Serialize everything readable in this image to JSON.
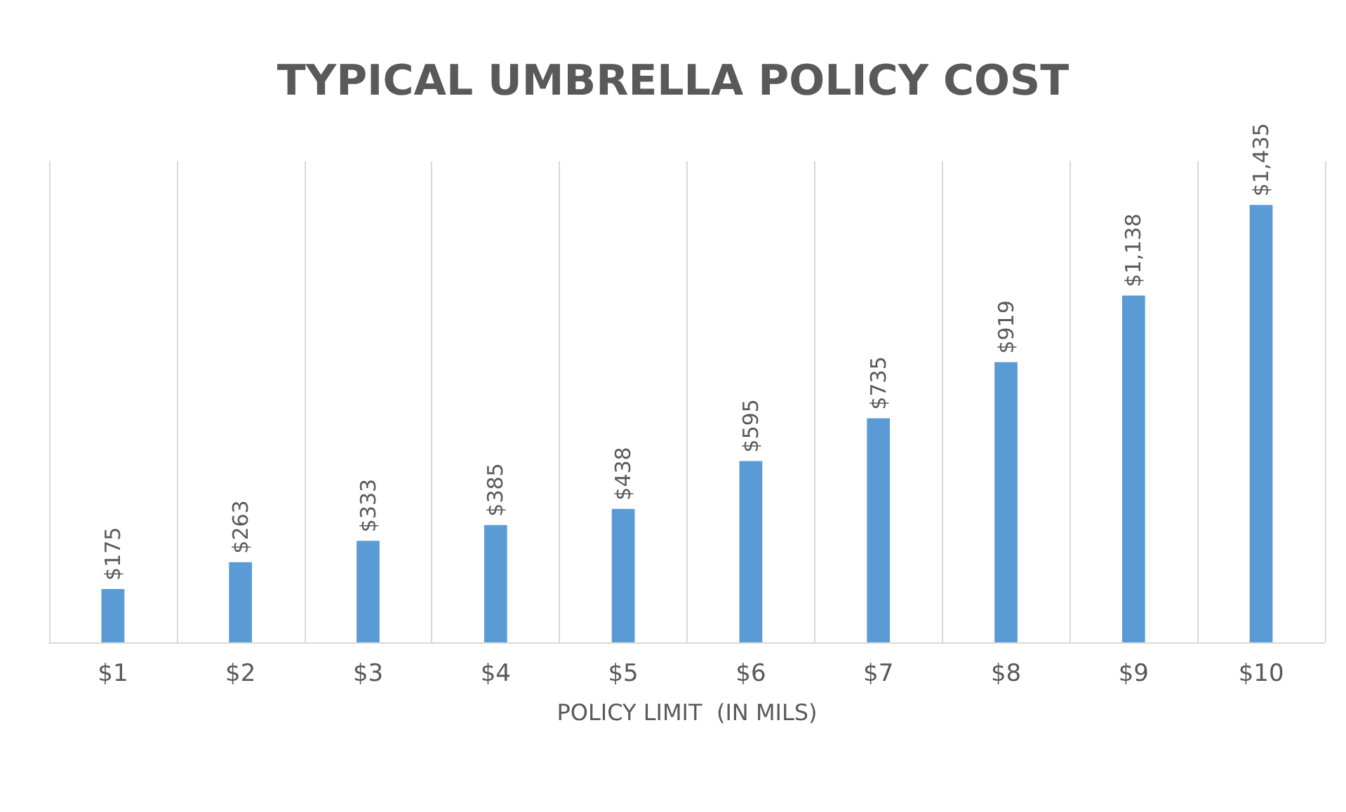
{
  "chart_data": {
    "type": "bar",
    "title": "TYPICAL UMBRELLA POLICY COST",
    "xlabel": "POLICY LIMIT  (IN MILS)",
    "categories": [
      "$1",
      "$2",
      "$3",
      "$4",
      "$5",
      "$6",
      "$7",
      "$8",
      "$9",
      "$10"
    ],
    "values": [
      175,
      263,
      333,
      385,
      438,
      595,
      735,
      919,
      1138,
      1435
    ],
    "value_labels": [
      "$175",
      "$263",
      "$333",
      "$385",
      "$438",
      "$595",
      "$735",
      "$919",
      "$1,138",
      "$1,435"
    ],
    "color": "#5b9bd5",
    "grid": "x"
  }
}
